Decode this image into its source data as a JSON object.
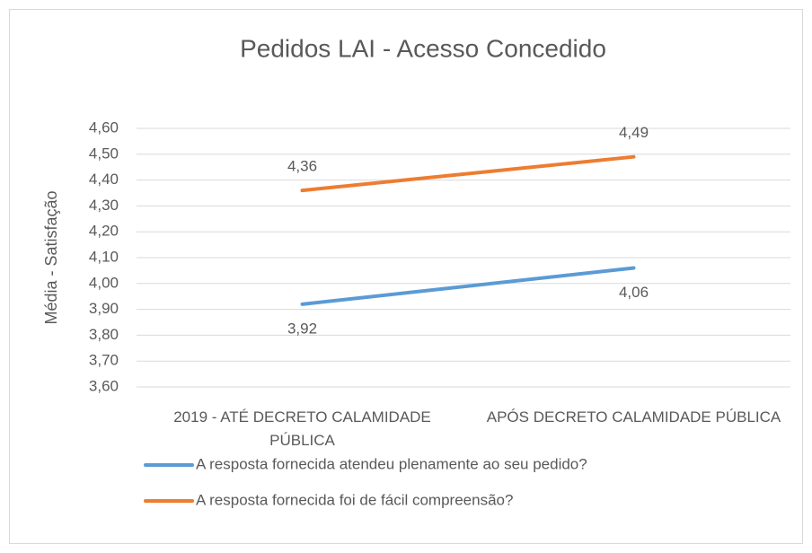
{
  "chart_data": {
    "type": "line",
    "title": "Pedidos LAI - Acesso Concedido",
    "y_label": "Média - Satisfação",
    "categories": [
      "2019 - ATÉ DECRETO CALAMIDADE PÚBLICA",
      "APÓS DECRETO CALAMIDADE PÚBLICA"
    ],
    "series": [
      {
        "name": "A resposta fornecida atendeu plenamente ao seu pedido?",
        "color": "#5b9bd5",
        "values": [
          3.92,
          4.06
        ],
        "value_labels": [
          "3,92",
          "4,06"
        ]
      },
      {
        "name": "A resposta fornecida foi de fácil compreensão?",
        "color": "#ed7d31",
        "values": [
          4.36,
          4.49
        ],
        "value_labels": [
          "4,36",
          "4,49"
        ]
      }
    ],
    "ylim": [
      3.6,
      4.6
    ],
    "yticks": [
      {
        "value": 3.6,
        "label": "3,60"
      },
      {
        "value": 3.7,
        "label": "3,70"
      },
      {
        "value": 3.8,
        "label": "3,80"
      },
      {
        "value": 3.9,
        "label": "3,90"
      },
      {
        "value": 4.0,
        "label": "4,00"
      },
      {
        "value": 4.1,
        "label": "4,10"
      },
      {
        "value": 4.2,
        "label": "4,20"
      },
      {
        "value": 4.3,
        "label": "4,30"
      },
      {
        "value": 4.4,
        "label": "4,40"
      },
      {
        "value": 4.5,
        "label": "4,50"
      },
      {
        "value": 4.6,
        "label": "4,60"
      }
    ],
    "grid": true,
    "legend": "bottom"
  }
}
